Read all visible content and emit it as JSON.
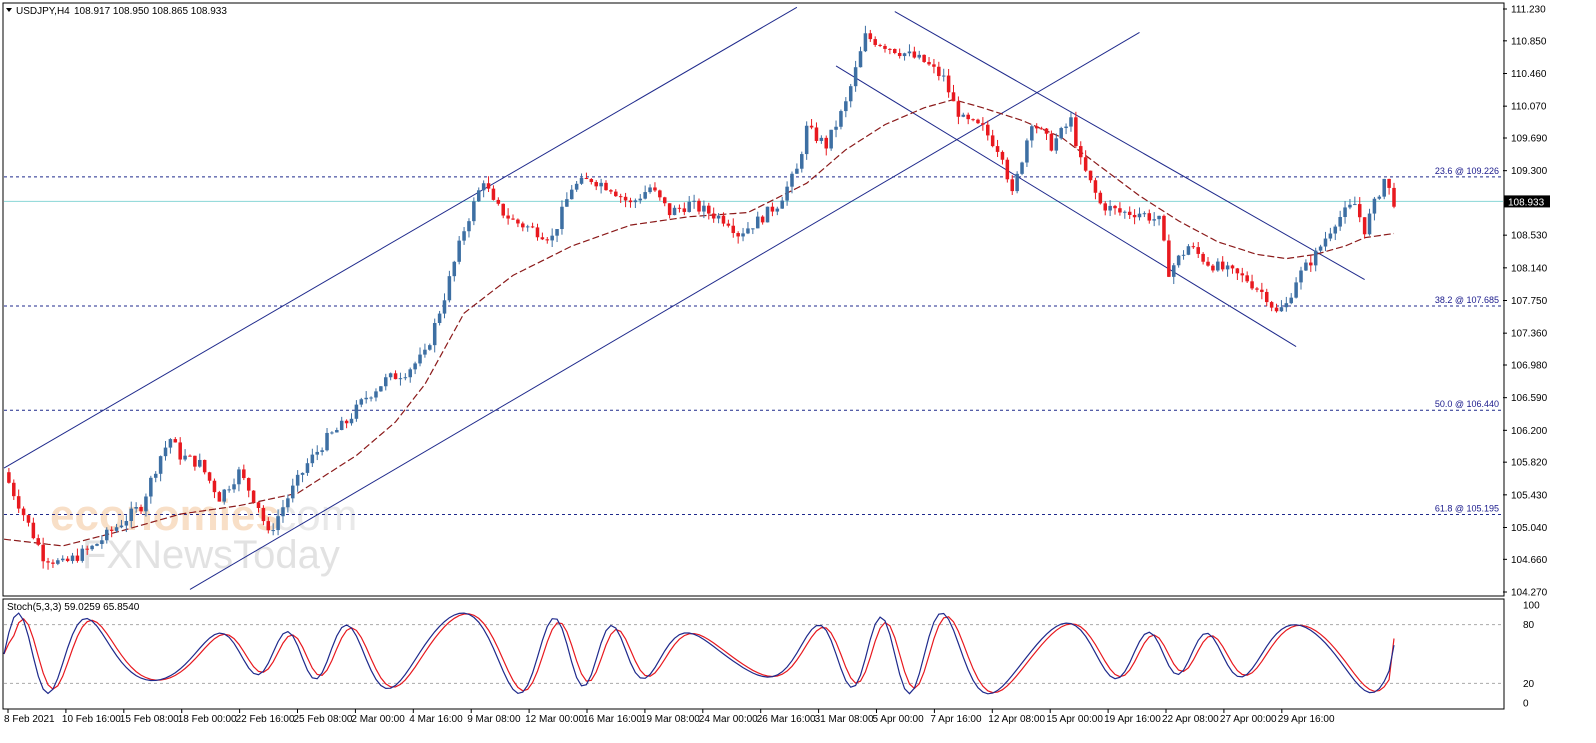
{
  "header": {
    "symbol": "USDJPY,H4",
    "ohlc": "108.917 108.950 108.865 108.933",
    "stoch_label": "Stoch(5,3,3) 59.0259 65.8540"
  },
  "watermark": {
    "brand_a": "economies",
    "brand_b": ".com",
    "brand_c": "FXNewsToday"
  },
  "colors": {
    "bull": "#3d6fa3",
    "bear": "#e8191f",
    "ma": "#8b1a1a",
    "channel": "#1f2a8c",
    "fib": "#1f2a8c",
    "current": "#8ad6d6",
    "stoch_main": "#1f2a8c",
    "stoch_signal": "#e8191f"
  },
  "chart_data": {
    "type": "candlestick",
    "symbol": "USDJPY",
    "timeframe": "H4",
    "y_ticks": [
      "111.230",
      "110.850",
      "110.460",
      "110.070",
      "109.690",
      "109.300",
      "108.530",
      "108.140",
      "107.750",
      "107.360",
      "106.980",
      "106.590",
      "106.200",
      "105.820",
      "105.430",
      "105.040",
      "104.660",
      "104.270"
    ],
    "ylim": [
      104.27,
      111.23
    ],
    "x_ticks": [
      "8 Feb 2021",
      "10 Feb 16:00",
      "15 Feb 08:00",
      "18 Feb 00:00",
      "22 Feb 16:00",
      "25 Feb 08:00",
      "2 Mar 00:00",
      "4 Mar 16:00",
      "9 Mar 08:00",
      "12 Mar 00:00",
      "16 Mar 16:00",
      "19 Mar 08:00",
      "24 Mar 00:00",
      "26 Mar 16:00",
      "31 Mar 08:00",
      "5 Apr 00:00",
      "7 Apr 16:00",
      "12 Apr 08:00",
      "15 Apr 00:00",
      "19 Apr 16:00",
      "22 Apr 08:00",
      "27 Apr 00:00",
      "29 Apr 16:00"
    ],
    "price_path": [
      [
        0,
        105.7
      ],
      [
        2,
        105.2
      ],
      [
        4,
        104.7
      ],
      [
        6,
        104.6
      ],
      [
        9,
        104.8
      ],
      [
        12,
        105.1
      ],
      [
        14,
        105.3
      ],
      [
        16,
        105.9
      ],
      [
        17,
        106.1
      ],
      [
        18,
        105.9
      ],
      [
        20,
        105.8
      ],
      [
        22,
        105.4
      ],
      [
        24,
        105.7
      ],
      [
        26,
        105.3
      ],
      [
        27,
        104.95
      ],
      [
        29,
        105.4
      ],
      [
        31,
        105.8
      ],
      [
        33,
        106.1
      ],
      [
        35,
        106.3
      ],
      [
        37,
        106.6
      ],
      [
        39,
        106.8
      ],
      [
        41,
        106.9
      ],
      [
        43,
        107.1
      ],
      [
        45,
        107.8
      ],
      [
        47,
        108.6
      ],
      [
        49,
        109.2
      ],
      [
        50,
        108.9
      ],
      [
        52,
        108.7
      ],
      [
        54,
        108.6
      ],
      [
        56,
        108.5
      ],
      [
        58,
        109.1
      ],
      [
        60,
        109.2
      ],
      [
        62,
        109.1
      ],
      [
        64,
        108.9
      ],
      [
        66,
        109.1
      ],
      [
        68,
        108.8
      ],
      [
        70,
        108.9
      ],
      [
        72,
        108.8
      ],
      [
        74,
        108.7
      ],
      [
        75,
        108.55
      ],
      [
        77,
        108.7
      ],
      [
        79,
        108.9
      ],
      [
        81,
        109.3
      ],
      [
        82,
        109.8
      ],
      [
        84,
        109.6
      ],
      [
        86,
        110.1
      ],
      [
        88,
        110.9
      ],
      [
        90,
        110.8
      ],
      [
        92,
        110.7
      ],
      [
        94,
        110.6
      ],
      [
        96,
        110.4
      ],
      [
        97,
        110.1
      ],
      [
        98,
        109.9
      ],
      [
        100,
        109.8
      ],
      [
        102,
        109.5
      ],
      [
        103,
        109.0
      ],
      [
        105,
        109.9
      ],
      [
        107,
        109.6
      ],
      [
        109,
        109.9
      ],
      [
        110,
        109.4
      ],
      [
        112,
        108.9
      ],
      [
        114,
        108.8
      ],
      [
        116,
        108.8
      ],
      [
        118,
        108.7
      ],
      [
        119,
        108.1
      ],
      [
        121,
        108.4
      ],
      [
        123,
        108.2
      ],
      [
        125,
        108.1
      ],
      [
        127,
        108.0
      ],
      [
        129,
        107.8
      ],
      [
        130,
        107.6
      ],
      [
        131,
        107.7
      ],
      [
        132,
        108.0
      ],
      [
        134,
        108.3
      ],
      [
        136,
        108.7
      ],
      [
        138,
        108.9
      ],
      [
        139,
        108.6
      ],
      [
        141,
        109.2
      ],
      [
        142,
        108.933
      ]
    ],
    "ma_path": [
      [
        0,
        104.9
      ],
      [
        6,
        104.82
      ],
      [
        12,
        105.0
      ],
      [
        18,
        105.2
      ],
      [
        24,
        105.3
      ],
      [
        30,
        105.45
      ],
      [
        36,
        105.9
      ],
      [
        40,
        106.3
      ],
      [
        43,
        106.75
      ],
      [
        47,
        107.6
      ],
      [
        52,
        108.05
      ],
      [
        58,
        108.4
      ],
      [
        64,
        108.65
      ],
      [
        70,
        108.75
      ],
      [
        76,
        108.8
      ],
      [
        82,
        109.15
      ],
      [
        86,
        109.55
      ],
      [
        90,
        109.85
      ],
      [
        94,
        110.05
      ],
      [
        97,
        110.15
      ],
      [
        100,
        110.05
      ],
      [
        104,
        109.9
      ],
      [
        108,
        109.7
      ],
      [
        112,
        109.35
      ],
      [
        116,
        109.0
      ],
      [
        120,
        108.7
      ],
      [
        124,
        108.45
      ],
      [
        128,
        108.3
      ],
      [
        131,
        108.25
      ],
      [
        134,
        108.3
      ],
      [
        137,
        108.4
      ],
      [
        139,
        108.5
      ],
      [
        142,
        108.55
      ]
    ],
    "fibonacci_levels": [
      {
        "label": "23.6 @ 109.226",
        "value": 109.226
      },
      {
        "label": "38.2 @ 107.685",
        "value": 107.685
      },
      {
        "label": "50.0 @ 106.440",
        "value": 106.44
      },
      {
        "label": "61.8 @ 105.195",
        "value": 105.195
      }
    ],
    "current_price": {
      "label": "108.933",
      "value": 108.933
    },
    "trendlines": [
      {
        "name": "ascending-channel-upper",
        "from": [
          0,
          105.75
        ],
        "to": [
          81,
          111.25
        ]
      },
      {
        "name": "ascending-channel-lower",
        "from": [
          19,
          104.3
        ],
        "to": [
          116,
          110.95
        ]
      },
      {
        "name": "descending-channel-upper",
        "from": [
          91,
          111.2
        ],
        "to": [
          139,
          108.0
        ]
      },
      {
        "name": "descending-channel-lower",
        "from": [
          85,
          110.55
        ],
        "to": [
          132,
          107.2
        ]
      }
    ],
    "stochastic": {
      "params": "5,3,3",
      "main": 59.0259,
      "signal": 65.854,
      "levels": [
        80,
        20
      ],
      "y_ticks": [
        "100",
        "80",
        "20",
        "0"
      ],
      "ylim": [
        0,
        100
      ]
    }
  }
}
